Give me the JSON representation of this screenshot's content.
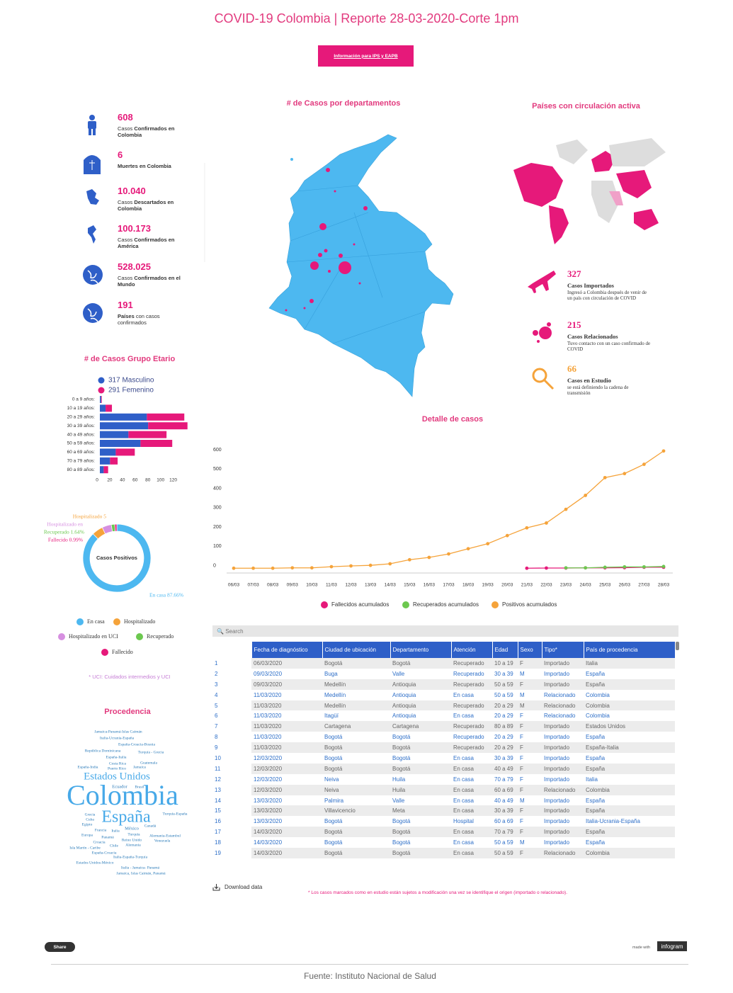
{
  "header": {
    "title": "COVID-19 Colombia | Reporte 28-03-2020-Corte 1pm",
    "button": "Información para IPS y EAPB"
  },
  "stats": [
    {
      "value": "608",
      "lead": "Casos",
      "bold": "Confirmados en Colombia"
    },
    {
      "value": "6",
      "bold": "Muertes en Colombia"
    },
    {
      "value": "10.040",
      "lead": "Casos",
      "bold": "Descartados en Colombia"
    },
    {
      "value": "100.173",
      "lead": "Casos",
      "bold": "Confirmados en América"
    },
    {
      "value": "528.025",
      "lead": "Casos",
      "bold": "Confirmados en el Mundo"
    },
    {
      "value": "191",
      "bold": "Países",
      "tail": "con casos confirmados"
    }
  ],
  "sections": {
    "departments": "# de Casos por departamentos",
    "countries": "Países con circulación activa",
    "origin": "Procedencia"
  },
  "case_types": [
    {
      "value": "327",
      "title": "Casos Importados",
      "text": "Ingresó a Colombia después de venir de un país con circulación de COVID"
    },
    {
      "value": "215",
      "title": "Casos Relacionados",
      "text": "Tuvo contacto con un caso confirmado de COVID"
    },
    {
      "value": "66",
      "title": "Casos en Estudio",
      "text": "se está definiendo la cadena de transmisión"
    }
  ],
  "chart_data": [
    {
      "type": "bar",
      "orientation": "horizontal",
      "stacked": true,
      "title": "# de Casos Grupo Etario",
      "categories": [
        "0 a 9 años:",
        "10 a 19 años:",
        "20 a 29 años:",
        "30 a 39 años:",
        "40 a 49 años:",
        "50 a 59 años:",
        "60 a 69 años:",
        "70 a 79 años:",
        "80 a 89 años:"
      ],
      "series": [
        {
          "name": "317 Masculino",
          "color": "#2f5fc8",
          "values": [
            2,
            9,
            74,
            76,
            45,
            64,
            25,
            16,
            6
          ]
        },
        {
          "name": "291 Femenino",
          "color": "#e6197a",
          "values": [
            1,
            10,
            59,
            62,
            60,
            50,
            30,
            12,
            7
          ]
        }
      ],
      "xlim": [
        0,
        145
      ],
      "xticks": [
        0,
        20,
        40,
        60,
        80,
        100,
        120
      ]
    },
    {
      "type": "donut",
      "title": "Casos Positivos",
      "categories": [
        "En casa",
        "Hospitalizado",
        "Hospitalizado en UCI",
        "Recuperado",
        "Fallecido"
      ],
      "values": [
        87.66,
        5.26,
        4.45,
        1.64,
        0.99
      ],
      "value_labels": [
        "En casa 87.66%",
        "Hospitalizado 5",
        "Hospitalizado en",
        "Recuperado 1.64%",
        "Fallecido 0.99%"
      ],
      "colors": [
        "#4db8f0",
        "#f5a33a",
        "#d68fe0",
        "#6cc84f",
        "#e6197a"
      ],
      "note": "* UCI: Cuidados intermedios y UCI"
    },
    {
      "type": "line",
      "title": "Detalle de casos",
      "x": [
        "06/03",
        "07/03",
        "08/03",
        "09/03",
        "10/03",
        "11/03",
        "12/03",
        "13/03",
        "14/03",
        "15/03",
        "16/03",
        "17/03",
        "18/03",
        "19/03",
        "20/03",
        "21/03",
        "22/03",
        "23/03",
        "24/03",
        "25/03",
        "26/03",
        "27/03",
        "28/03"
      ],
      "series": [
        {
          "name": "Fallecidos acumulados",
          "color": "#e6197a",
          "values": [
            null,
            null,
            null,
            null,
            null,
            null,
            null,
            null,
            null,
            null,
            null,
            null,
            null,
            null,
            null,
            1,
            2,
            2,
            3,
            3,
            4,
            6,
            6
          ]
        },
        {
          "name": "Recuperados acumulados",
          "color": "#6cc84f",
          "values": [
            null,
            null,
            null,
            null,
            null,
            null,
            null,
            null,
            null,
            null,
            null,
            null,
            null,
            null,
            null,
            null,
            null,
            3,
            3,
            6,
            8,
            8,
            10
          ]
        },
        {
          "name": "Positivos acumulados",
          "color": "#f5a33a",
          "values": [
            1,
            1,
            1,
            3,
            3,
            9,
            13,
            16,
            24,
            45,
            57,
            75,
            102,
            128,
            170,
            210,
            235,
            306,
            378,
            470,
            491,
            539,
            608
          ]
        }
      ],
      "ylim": [
        -20,
        640
      ],
      "yticks": [
        0,
        100,
        200,
        300,
        400,
        500,
        600
      ],
      "grid": false
    }
  ],
  "wordcloud": [
    "Jamaica-Panamá-Islas Caimán",
    "Italia-Ucrania-España",
    "España-Croacia-Bosnia",
    "República Dominicana",
    "Turquía - Grecia",
    "España-Italia",
    "Costa Rica",
    "Guatemala",
    "España-India",
    "Puerto Rico",
    "Jamaica",
    "Estados Unidos",
    "Ecuador",
    "Brasil",
    "Colombia",
    "España",
    "Turquía-España",
    "Grecia",
    "Cuba",
    "Egipto",
    "Francia",
    "Italia",
    "México",
    "Canadá",
    "Europa",
    "Panamá",
    "Turquía",
    "Alemania-Estambul",
    "Croacia",
    "Reino Unido",
    "Venezuela",
    "Chile",
    "Alemania",
    "Isla Martín - Caribe",
    "España-Croacia",
    "Italia-España-Turquía",
    "Estados Unidos-México",
    "Italia - Jamaica- Panamá",
    "Jamaica, Islas Caimán, Panamá"
  ],
  "table": {
    "search": "Search",
    "headers": [
      "Fecha de diagnóstico",
      "Ciudad de ubicación",
      "Departamento",
      "Atención",
      "Edad",
      "Sexo",
      "Tipo*",
      "País de procedencia"
    ],
    "rows": [
      [
        "1",
        "06/03/2020",
        "Bogotá",
        "Bogotá",
        "Recuperado",
        "10 a 19",
        "F",
        "Importado",
        "Italia"
      ],
      [
        "2",
        "09/03/2020",
        "Buga",
        "Valle",
        "Recuperado",
        "30 a 39",
        "M",
        "Importado",
        "España"
      ],
      [
        "3",
        "09/03/2020",
        "Medellín",
        "Antioquia",
        "Recuperado",
        "50 a 59",
        "F",
        "Importado",
        "España"
      ],
      [
        "4",
        "11/03/2020",
        "Medellín",
        "Antioquia",
        "En casa",
        "50 a 59",
        "M",
        "Relacionado",
        "Colombia"
      ],
      [
        "5",
        "11/03/2020",
        "Medellín",
        "Antioquia",
        "Recuperado",
        "20 a 29",
        "M",
        "Relacionado",
        "Colombia"
      ],
      [
        "6",
        "11/03/2020",
        "Itagüí",
        "Antioquia",
        "En casa",
        "20 a 29",
        "F",
        "Relacionado",
        "Colombia"
      ],
      [
        "7",
        "11/03/2020",
        "Cartagena",
        "Cartagena",
        "Recuperado",
        "80 a 89",
        "F",
        "Importado",
        "Estados Unidos"
      ],
      [
        "8",
        "11/03/2020",
        "Bogotá",
        "Bogotá",
        "Recuperado",
        "20 a 29",
        "F",
        "Importado",
        "España"
      ],
      [
        "9",
        "11/03/2020",
        "Bogotá",
        "Bogotá",
        "Recuperado",
        "20 a 29",
        "F",
        "Importado",
        "España-Italia"
      ],
      [
        "10",
        "12/03/2020",
        "Bogotá",
        "Bogotá",
        "En casa",
        "30 a 39",
        "F",
        "Importado",
        "España"
      ],
      [
        "11",
        "12/03/2020",
        "Bogotá",
        "Bogotá",
        "En casa",
        "40 a 49",
        "F",
        "Importado",
        "España"
      ],
      [
        "12",
        "12/03/2020",
        "Neiva",
        "Huila",
        "En casa",
        "70 a 79",
        "F",
        "Importado",
        "Italia"
      ],
      [
        "13",
        "12/03/2020",
        "Neiva",
        "Huila",
        "En casa",
        "60 a 69",
        "F",
        "Relacionado",
        "Colombia"
      ],
      [
        "14",
        "13/03/2020",
        "Palmira",
        "Valle",
        "En casa",
        "40 a 49",
        "M",
        "Importado",
        "España"
      ],
      [
        "15",
        "13/03/2020",
        "Villavicencio",
        "Meta",
        "En casa",
        "30 a 39",
        "F",
        "Importado",
        "España"
      ],
      [
        "16",
        "13/03/2020",
        "Bogotá",
        "Bogotá",
        "Hospital",
        "60 a 69",
        "F",
        "Importado",
        "Italia-Ucrania-España"
      ],
      [
        "17",
        "14/03/2020",
        "Bogotá",
        "Bogotá",
        "En casa",
        "70 a 79",
        "F",
        "Importado",
        "España"
      ],
      [
        "18",
        "14/03/2020",
        "Bogotá",
        "Bogotá",
        "En casa",
        "50 a 59",
        "M",
        "Importado",
        "España"
      ],
      [
        "19",
        "14/03/2020",
        "Bogotá",
        "Bogotá",
        "En casa",
        "50 a 59",
        "F",
        "Relacionado",
        "Colombia"
      ]
    ],
    "download": "Download data",
    "footnote": "* Los casos marcados como en estudio están sujetos a modificación una vez se identifique el origen (importado o relacionado)."
  },
  "footer": {
    "share": "Share",
    "made_with": "made with",
    "brand": "infogram",
    "source": "Fuente: Instituto Nacional de Salud"
  }
}
